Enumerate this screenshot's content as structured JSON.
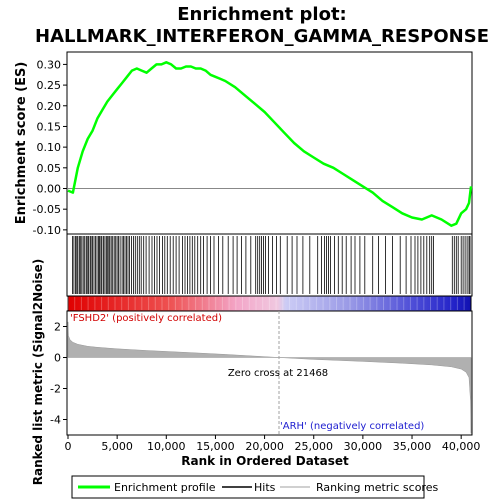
{
  "chart_data": {
    "type": "line",
    "title_line1": "Enrichment plot:",
    "title_line2": "HALLMARK_INTERFERON_GAMMA_RESPONSE",
    "ylabel_es": "Enrichment score (ES)",
    "ylabel_metric": "Ranked list metric (Signal2Noise)",
    "xlabel": "Rank in Ordered Dataset",
    "xlim": [
      0,
      41000
    ],
    "xticks": [
      0,
      5000,
      10000,
      15000,
      20000,
      25000,
      30000,
      35000,
      40000
    ],
    "xtick_labels": [
      "0",
      "5,000",
      "10,000",
      "15,000",
      "20,000",
      "25,000",
      "30,000",
      "35,000",
      "40,000"
    ],
    "es_ylim": [
      -0.11,
      0.33
    ],
    "es_yticks": [
      -0.1,
      -0.05,
      0.0,
      0.05,
      0.1,
      0.15,
      0.2,
      0.25,
      0.3
    ],
    "es_ytick_labels": [
      "-0.10",
      "-0.05",
      "0.00",
      "0.05",
      "0.10",
      "0.15",
      "0.20",
      "0.25",
      "0.30"
    ],
    "metric_ylim": [
      -5.0,
      3.0
    ],
    "metric_yticks": [
      2,
      0,
      -2,
      -4
    ],
    "metric_ytick_labels": [
      "2",
      "0",
      "-2",
      "-4"
    ],
    "zero_cross_rank": 21468,
    "zero_cross_label": "Zero cross at 21468",
    "pos_label": "'FSHD2' (positively correlated)",
    "neg_label": "'ARH' (negatively correlated)",
    "enrichment_profile": {
      "x": [
        0,
        500,
        1000,
        1500,
        2000,
        2500,
        3000,
        3500,
        4000,
        4500,
        5000,
        5500,
        6000,
        6500,
        7000,
        7500,
        8000,
        8500,
        9000,
        9500,
        10000,
        10500,
        11000,
        11500,
        12000,
        12500,
        13000,
        13500,
        14000,
        14500,
        15000,
        15500,
        16000,
        17000,
        18000,
        19000,
        20000,
        21000,
        22000,
        23000,
        24000,
        25000,
        26000,
        27000,
        28000,
        29000,
        30000,
        31000,
        32000,
        33000,
        34000,
        35000,
        36000,
        37000,
        38000,
        39000,
        39500,
        40000,
        40500,
        40800,
        41000
      ],
      "y": [
        -0.005,
        -0.01,
        0.05,
        0.09,
        0.12,
        0.14,
        0.17,
        0.19,
        0.21,
        0.225,
        0.24,
        0.255,
        0.27,
        0.285,
        0.29,
        0.285,
        0.28,
        0.29,
        0.3,
        0.3,
        0.305,
        0.3,
        0.29,
        0.29,
        0.295,
        0.295,
        0.29,
        0.29,
        0.285,
        0.275,
        0.27,
        0.265,
        0.26,
        0.245,
        0.225,
        0.205,
        0.185,
        0.16,
        0.135,
        0.11,
        0.09,
        0.075,
        0.06,
        0.05,
        0.035,
        0.02,
        0.005,
        -0.01,
        -0.03,
        -0.045,
        -0.06,
        -0.07,
        -0.075,
        -0.065,
        -0.075,
        -0.09,
        -0.085,
        -0.06,
        -0.05,
        -0.035,
        0.005
      ]
    },
    "hits_ranks": [
      450,
      600,
      750,
      900,
      1000,
      1150,
      1250,
      1400,
      1550,
      1700,
      1850,
      1950,
      2100,
      2250,
      2350,
      2500,
      2650,
      2800,
      2950,
      3100,
      3200,
      3350,
      3450,
      3600,
      3750,
      3900,
      4000,
      4150,
      4250,
      4400,
      4550,
      4700,
      4850,
      5000,
      5150,
      5300,
      5500,
      5650,
      5800,
      5950,
      6100,
      6250,
      6450,
      6650,
      6850,
      7050,
      7250,
      7450,
      7700,
      7950,
      8250,
      8550,
      8800,
      9050,
      9300,
      9600,
      9850,
      10100,
      10400,
      10700,
      11000,
      11300,
      11650,
      11900,
      12150,
      12400,
      12650,
      12900,
      13200,
      13500,
      13800,
      14150,
      14500,
      14850,
      15300,
      15750,
      16300,
      16800,
      17200,
      17650,
      18100,
      18600,
      19100,
      19300,
      19500,
      19700,
      19900,
      20100,
      20400,
      20800,
      21200,
      21600,
      22300,
      22800,
      23300,
      23900,
      24600,
      25400,
      25800,
      26100,
      26300,
      26500,
      26700,
      27100,
      27500,
      27900,
      28300,
      28800,
      29200,
      29700,
      30200,
      31000,
      31600,
      32300,
      33000,
      33800,
      34400,
      34900,
      35300,
      35600,
      35900,
      36200,
      36500,
      36800,
      37000,
      37200,
      39100,
      39300,
      39500,
      39700,
      40000,
      40200,
      40400,
      40600,
      40800,
      40900
    ],
    "metric_curve": {
      "x": [
        0,
        50,
        200,
        500,
        1000,
        2000,
        3000,
        5000,
        8000,
        12000,
        16000,
        21468,
        25000,
        30000,
        34000,
        37000,
        39000,
        40000,
        40500,
        40800,
        40950,
        41000
      ],
      "y": [
        2.3,
        1.4,
        1.15,
        0.98,
        0.85,
        0.72,
        0.66,
        0.56,
        0.45,
        0.33,
        0.2,
        0.0,
        -0.12,
        -0.25,
        -0.37,
        -0.48,
        -0.6,
        -0.75,
        -0.95,
        -1.3,
        -2.8,
        -4.9
      ]
    },
    "legend": {
      "items": [
        "Enrichment profile",
        "Hits",
        "Ranking metric scores"
      ],
      "colors": [
        "#00ff00",
        "#000000",
        "#c0c0c0"
      ]
    },
    "colors": {
      "profile": "#00ff00",
      "hits": "#000000",
      "metric": "#a8a8a8",
      "pos_text": "#d00000",
      "neg_text": "#2020d0",
      "zero_line": "#a0a0a0"
    }
  }
}
